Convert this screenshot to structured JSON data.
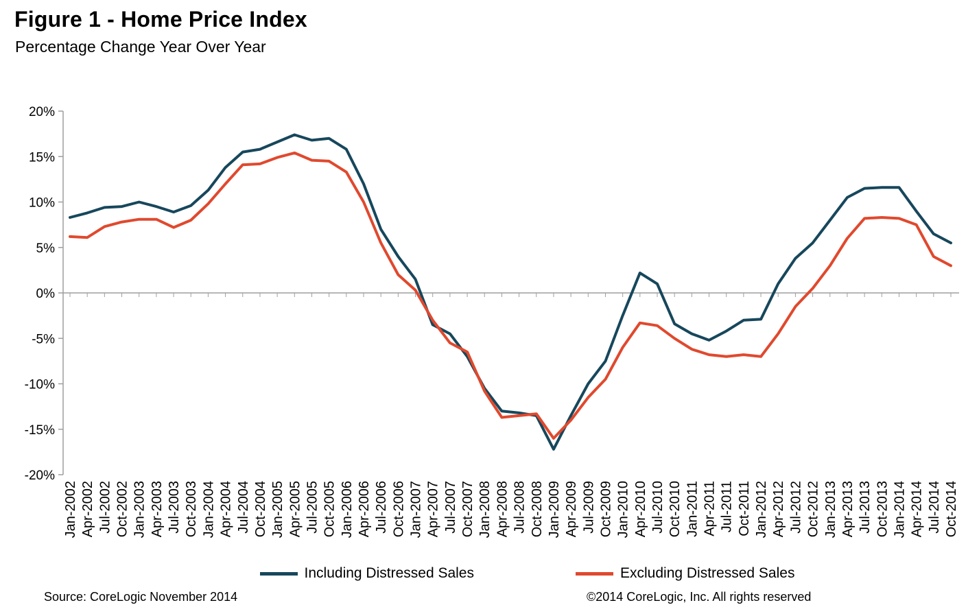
{
  "header": {
    "title": "Figure 1 - Home Price Index",
    "subtitle": "Percentage Change Year Over Year"
  },
  "footer": {
    "source": "Source: CoreLogic November 2014",
    "copyright": "©2014 CoreLogic, Inc. All rights reserved"
  },
  "chart_data": {
    "type": "line",
    "title": "Figure 1 - Home Price Index",
    "subtitle": "Percentage Change Year Over Year",
    "xlabel": "",
    "ylabel": "Percentage Change Year Over Year",
    "ylim": [
      -20,
      20
    ],
    "ytick_step": 5,
    "ytick_suffix": "%",
    "grid": "zero-line-only",
    "legend_position": "bottom",
    "axis_color": "#9e9e9e",
    "categories": [
      "Jan-2002",
      "Apr-2002",
      "Jul-2002",
      "Oct-2002",
      "Jan-2003",
      "Apr-2003",
      "Jul-2003",
      "Oct-2003",
      "Jan-2004",
      "Apr-2004",
      "Jul-2004",
      "Oct-2004",
      "Jan-2005",
      "Apr-2005",
      "Jul-2005",
      "Oct-2005",
      "Jan-2006",
      "Apr-2006",
      "Jul-2006",
      "Oct-2006",
      "Jan-2007",
      "Apr-2007",
      "Jul-2007",
      "Oct-2007",
      "Jan-2008",
      "Apr-2008",
      "Jul-2008",
      "Oct-2008",
      "Jan-2009",
      "Apr-2009",
      "Jul-2009",
      "Oct-2009",
      "Jan-2010",
      "Apr-2010",
      "Jul-2010",
      "Oct-2010",
      "Jan-2011",
      "Apr-2011",
      "Jul-2011",
      "Oct-2011",
      "Jan-2012",
      "Apr-2012",
      "Jul-2012",
      "Oct-2012",
      "Jan-2013",
      "Apr-2013",
      "Jul-2013",
      "Oct-2013",
      "Jan-2014",
      "Apr-2014",
      "Jul-2014",
      "Oct-2014"
    ],
    "series": [
      {
        "name": "Including Distressed Sales",
        "color": "#17475c",
        "values": [
          8.3,
          8.8,
          9.4,
          9.5,
          10.0,
          9.5,
          8.9,
          9.6,
          11.3,
          13.8,
          15.5,
          15.8,
          16.6,
          17.4,
          16.8,
          17.0,
          15.8,
          12.0,
          7.0,
          4.0,
          1.5,
          -3.5,
          -4.5,
          -7.0,
          -10.5,
          -13.0,
          -13.2,
          -13.5,
          -17.2,
          -13.5,
          -10.0,
          -7.5,
          -2.5,
          2.2,
          1.0,
          -3.4,
          -4.5,
          -5.2,
          -4.2,
          -3.0,
          -2.9,
          1.0,
          3.8,
          5.5,
          8.0,
          10.5,
          11.5,
          11.6,
          11.6,
          9.0,
          6.5,
          5.5
        ]
      },
      {
        "name": "Excluding Distressed Sales",
        "color": "#e0492e",
        "values": [
          6.2,
          6.1,
          7.3,
          7.8,
          8.1,
          8.1,
          7.2,
          8.0,
          9.8,
          12.0,
          14.1,
          14.2,
          14.9,
          15.4,
          14.6,
          14.5,
          13.3,
          10.0,
          5.5,
          2.0,
          0.3,
          -3.0,
          -5.5,
          -6.5,
          -10.8,
          -13.7,
          -13.5,
          -13.3,
          -16.0,
          -14.0,
          -11.5,
          -9.5,
          -6.0,
          -3.3,
          -3.6,
          -5.0,
          -6.2,
          -6.8,
          -7.0,
          -6.8,
          -7.0,
          -4.5,
          -1.5,
          0.5,
          3.0,
          6.0,
          8.2,
          8.3,
          8.2,
          7.5,
          4.0,
          3.0
        ]
      }
    ]
  }
}
